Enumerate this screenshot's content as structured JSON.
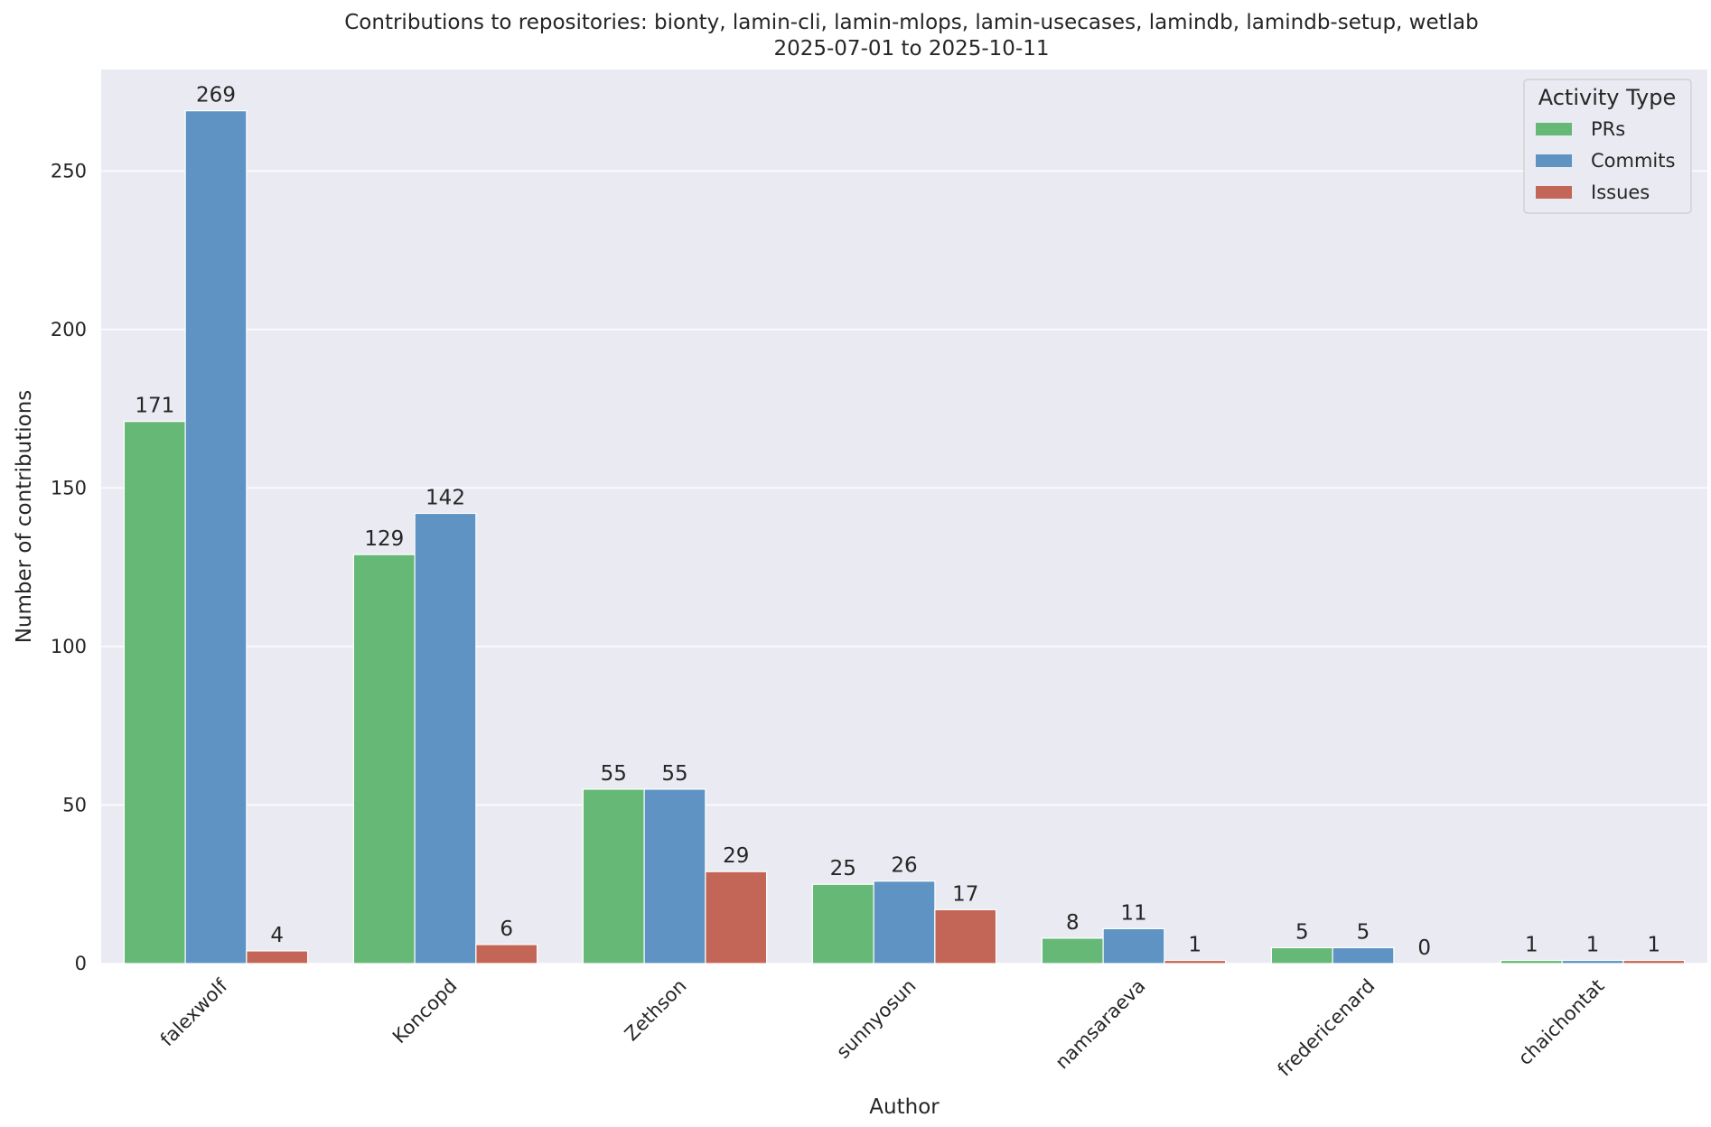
{
  "chart_data": {
    "type": "bar",
    "title": "Contributions to repositories: bionty, lamin-cli, lamin-mlops, lamin-usecases, lamindb, lamindb-setup, wetlab",
    "subtitle": "2025-07-01 to 2025-10-11",
    "xlabel": "Author",
    "ylabel": "Number of contributions",
    "ylim": [
      0,
      282
    ],
    "yticks": [
      0,
      50,
      100,
      150,
      200,
      250
    ],
    "grid": true,
    "legend": {
      "title": "Activity Type",
      "placement": "top-right"
    },
    "categories": [
      "falexwolf",
      "Koncopd",
      "Zethson",
      "sunnyosun",
      "namsaraeva",
      "fredericenard",
      "chaichontat"
    ],
    "series": [
      {
        "name": "PRs",
        "color": "#66b877",
        "values": [
          171,
          129,
          55,
          25,
          8,
          5,
          1
        ]
      },
      {
        "name": "Commits",
        "color": "#5e93c3",
        "values": [
          269,
          142,
          55,
          26,
          11,
          5,
          1
        ]
      },
      {
        "name": "Issues",
        "color": "#c46657",
        "values": [
          4,
          6,
          29,
          17,
          1,
          0,
          1
        ]
      }
    ]
  }
}
